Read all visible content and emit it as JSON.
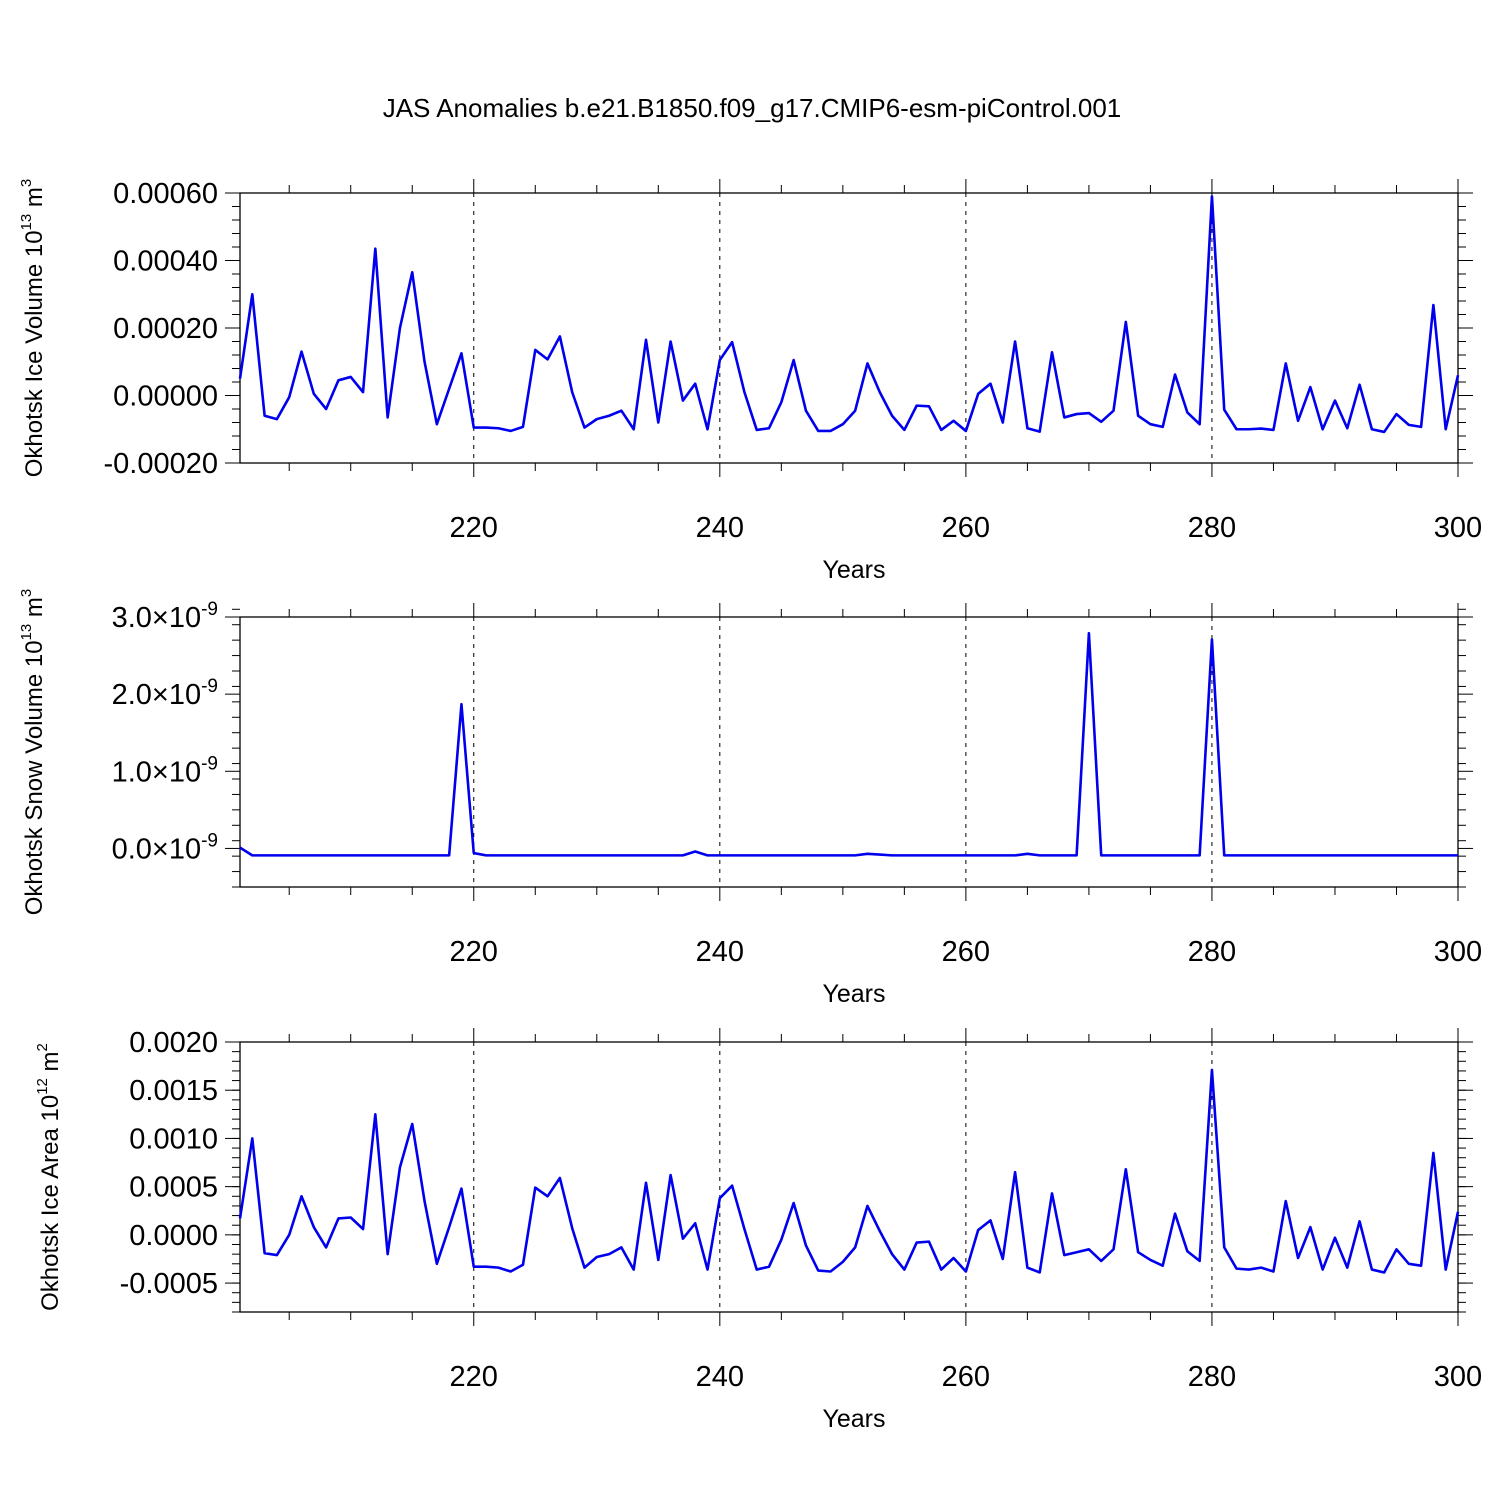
{
  "figure": {
    "title": "JAS Anomalies b.e21.B1850.f09_g17.CMIP6-esm-piControl.001"
  },
  "chart_data": [
    {
      "type": "line",
      "ylabel_main": "Okhotsk Ice Volume 10",
      "ylabel_exp": "13",
      "ylabel_unit": " m",
      "ylabel_unit_exp": "3",
      "xlabel": "Years",
      "xlim": [
        201,
        300
      ],
      "ylim": [
        -0.0002,
        0.0006
      ],
      "yticks": [
        -0.0002,
        0,
        0.0002,
        0.0004,
        0.0006
      ],
      "yticklabels": [
        "-0.00020",
        "0.00000",
        "0.00020",
        "0.00040",
        "0.00060"
      ],
      "yminor": 4e-05,
      "xticks": [
        220,
        240,
        260,
        280,
        300
      ],
      "xticklabels": [
        "220",
        "240",
        "260",
        "280",
        "300"
      ],
      "grid_x": [
        220,
        240,
        260,
        280
      ],
      "x_start": 201,
      "series": [
        {
          "color": "#0000ee",
          "values": [
            5e-05,
            0.0003,
            -6e-05,
            -7e-05,
            -5e-06,
            0.00013,
            5e-06,
            -4e-05,
            4.5e-05,
            5.5e-05,
            1e-05,
            0.000435,
            -6.5e-05,
            0.0002,
            0.000365,
            0.0001,
            -8.5e-05,
            2e-05,
            0.000125,
            -9.5e-05,
            -9.5e-05,
            -9.7e-05,
            -0.000105,
            -9.3e-05,
            0.000135,
            0.000107,
            0.000175,
            1e-05,
            -9.5e-05,
            -7e-05,
            -6e-05,
            -4.5e-05,
            -0.0001,
            0.000165,
            -8e-05,
            0.00016,
            -1.5e-05,
            3.5e-05,
            -0.0001,
            0.000105,
            0.000158,
            1e-05,
            -0.000102,
            -9.7e-05,
            -2e-05,
            0.000105,
            -4.5e-05,
            -0.000105,
            -0.000105,
            -8.5e-05,
            -4.5e-05,
            9.5e-05,
            1e-05,
            -6e-05,
            -0.000102,
            -3e-05,
            -3.2e-05,
            -0.000102,
            -7.5e-05,
            -0.000105,
            5e-06,
            3.5e-05,
            -8e-05,
            0.00016,
            -9.7e-05,
            -0.000107,
            0.000128,
            -6.5e-05,
            -5.5e-05,
            -5.2e-05,
            -7.8e-05,
            -4.5e-05,
            0.000218,
            -6e-05,
            -8.5e-05,
            -9.3e-05,
            6.2e-05,
            -5e-05,
            -8.5e-05,
            0.00059,
            -4.2e-05,
            -0.0001,
            -0.0001,
            -9.8e-05,
            -0.000102,
            9.5e-05,
            -7.5e-05,
            2.5e-05,
            -0.0001,
            -1.5e-05,
            -9.7e-05,
            3.2e-05,
            -0.0001,
            -0.000108,
            -5.5e-05,
            -8.7e-05,
            -9.3e-05,
            0.000268,
            -0.0001,
            6e-05
          ]
        }
      ]
    },
    {
      "type": "line",
      "ylabel_main": "Okhotsk Snow Volume 10",
      "ylabel_exp": "13",
      "ylabel_unit": " m",
      "ylabel_unit_exp": "3",
      "xlabel": "Years",
      "xlim": [
        201,
        300
      ],
      "ylim": [
        -5e-10,
        3e-09
      ],
      "yticks": [
        0,
        1e-09,
        2e-09,
        3e-09
      ],
      "yticklabels": [
        {
          "mant": "0.0",
          "exp": "-9"
        },
        {
          "mant": "1.0",
          "exp": "-9"
        },
        {
          "mant": "2.0",
          "exp": "-9"
        },
        {
          "mant": "3.0",
          "exp": "-9"
        }
      ],
      "yminor": 2e-10,
      "xticks": [
        220,
        240,
        260,
        280,
        300
      ],
      "xticklabels": [
        "220",
        "240",
        "260",
        "280",
        "300"
      ],
      "grid_x": [
        220,
        240,
        260,
        280
      ],
      "x_start": 201,
      "series": [
        {
          "color": "#0000ee",
          "values": [
            1e-11,
            -9e-11,
            -9e-11,
            -9e-11,
            -9e-11,
            -9e-11,
            -9e-11,
            -9e-11,
            -9e-11,
            -9e-11,
            -9e-11,
            -9e-11,
            -9e-11,
            -9e-11,
            -9e-11,
            -9e-11,
            -9e-11,
            -9e-11,
            1.87e-09,
            -6e-11,
            -9e-11,
            -9e-11,
            -9e-11,
            -9e-11,
            -9e-11,
            -9e-11,
            -9e-11,
            -9e-11,
            -9e-11,
            -9e-11,
            -9e-11,
            -9e-11,
            -9e-11,
            -9e-11,
            -9e-11,
            -9e-11,
            -9e-11,
            -4e-11,
            -9e-11,
            -9e-11,
            -9e-11,
            -9e-11,
            -9e-11,
            -9e-11,
            -9e-11,
            -9e-11,
            -9e-11,
            -9e-11,
            -9e-11,
            -9e-11,
            -9e-11,
            -7e-11,
            -8e-11,
            -9e-11,
            -9e-11,
            -9e-11,
            -9e-11,
            -9e-11,
            -9e-11,
            -9e-11,
            -9e-11,
            -9e-11,
            -9e-11,
            -9e-11,
            -7e-11,
            -9e-11,
            -9e-11,
            -9e-11,
            -9e-11,
            2.79e-09,
            -9e-11,
            -9e-11,
            -9e-11,
            -9e-11,
            -9e-11,
            -9e-11,
            -9e-11,
            -9e-11,
            -9e-11,
            2.71e-09,
            -9e-11,
            -9e-11,
            -9e-11,
            -9e-11,
            -9e-11,
            -9e-11,
            -9e-11,
            -9e-11,
            -9e-11,
            -9e-11,
            -9e-11,
            -9e-11,
            -9e-11,
            -9e-11,
            -9e-11,
            -9e-11,
            -9e-11,
            -9e-11,
            -9e-11,
            -9e-11
          ]
        }
      ]
    },
    {
      "type": "line",
      "ylabel_main": "Okhotsk Ice Area 10",
      "ylabel_exp": "12",
      "ylabel_unit": " m",
      "ylabel_unit_exp": "2",
      "xlabel": "Years",
      "xlim": [
        201,
        300
      ],
      "ylim": [
        -0.0008,
        0.002
      ],
      "yticks": [
        -0.0005,
        0,
        0.0005,
        0.001,
        0.0015,
        0.002
      ],
      "yticklabels": [
        "-0.0005",
        "0.0000",
        "0.0005",
        "0.0010",
        "0.0015",
        "0.0020"
      ],
      "yminor": 0.0001,
      "xticks": [
        220,
        240,
        260,
        280,
        300
      ],
      "xticklabels": [
        "220",
        "240",
        "260",
        "280",
        "300"
      ],
      "grid_x": [
        220,
        240,
        260,
        280
      ],
      "x_start": 201,
      "series": [
        {
          "color": "#0000ee",
          "values": [
            0.00017,
            0.001,
            -0.00019,
            -0.00021,
            0.0,
            0.0004,
            8e-05,
            -0.00013,
            0.00017,
            0.00018,
            6e-05,
            0.00125,
            -0.0002,
            0.0007,
            0.00115,
            0.00035,
            -0.0003,
            8e-05,
            0.00048,
            -0.00033,
            -0.00033,
            -0.00034,
            -0.00038,
            -0.00031,
            0.00049,
            0.0004,
            0.00059,
            7e-05,
            -0.00034,
            -0.00023,
            -0.0002,
            -0.00013,
            -0.00036,
            0.00054,
            -0.00026,
            0.00062,
            -4e-05,
            0.00012,
            -0.00036,
            0.00038,
            0.00051,
            6e-05,
            -0.00036,
            -0.00033,
            -5e-05,
            0.00033,
            -0.00011,
            -0.00037,
            -0.00038,
            -0.00028,
            -0.00013,
            0.0003,
            4e-05,
            -0.0002,
            -0.00036,
            -8e-05,
            -7e-05,
            -0.00036,
            -0.00024,
            -0.00038,
            5e-05,
            0.00015,
            -0.00025,
            0.00065,
            -0.00034,
            -0.00039,
            0.00043,
            -0.00021,
            -0.00018,
            -0.00015,
            -0.00027,
            -0.00015,
            0.00068,
            -0.00018,
            -0.00026,
            -0.00032,
            0.00022,
            -0.00017,
            -0.00027,
            0.00171,
            -0.00013,
            -0.00035,
            -0.00036,
            -0.00034,
            -0.00038,
            0.00035,
            -0.00024,
            8e-05,
            -0.00036,
            -3e-05,
            -0.00034,
            0.00014,
            -0.00036,
            -0.00039,
            -0.00015,
            -0.0003,
            -0.00032,
            0.00085,
            -0.00036,
            0.00024
          ]
        }
      ]
    }
  ]
}
